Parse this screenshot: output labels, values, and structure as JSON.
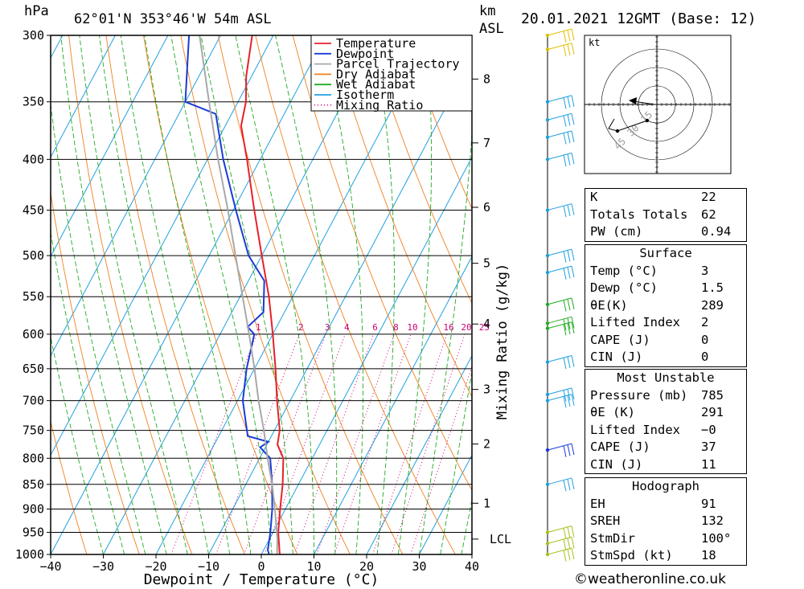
{
  "header": {
    "hpa_label": "hPa",
    "location": "62°01'N  353°46'W  54m  ASL",
    "km_label": "km",
    "asl_label": "ASL",
    "datetime": "20.01.2021  12GMT  (Base: 12)"
  },
  "legend": {
    "items": [
      {
        "label": "Temperature",
        "color": "#e8202a",
        "style": "solid"
      },
      {
        "label": "Dewpoint",
        "color": "#1a3bd8",
        "style": "solid"
      },
      {
        "label": "Parcel Trajectory",
        "color": "#a8a8a8",
        "style": "solid"
      },
      {
        "label": "Dry Adiabat",
        "color": "#f08020",
        "style": "solid"
      },
      {
        "label": "Wet Adiabat",
        "color": "#22aa22",
        "style": "solid"
      },
      {
        "label": "Isotherm",
        "color": "#20a0e0",
        "style": "solid"
      },
      {
        "label": "Mixing Ratio",
        "color": "#cc0077",
        "style": "dotted"
      }
    ]
  },
  "chart_data": {
    "type": "line",
    "xlabel": "Dewpoint / Temperature (°C)",
    "ylabel": "hPa",
    "x_ticks": [
      "−40",
      "−30",
      "−20",
      "−10",
      "0",
      "10",
      "20",
      "30",
      "40"
    ],
    "pressure_ticks": [
      "300",
      "350",
      "400",
      "450",
      "500",
      "550",
      "600",
      "650",
      "700",
      "750",
      "800",
      "850",
      "900",
      "950",
      "1000"
    ],
    "height_axis": {
      "label": "km ASL",
      "ticks": [
        {
          "label": "8",
          "p": 332
        },
        {
          "label": "7",
          "p": 385
        },
        {
          "label": "6",
          "p": 447
        },
        {
          "label": "5",
          "p": 509
        },
        {
          "label": "4",
          "p": 586
        },
        {
          "label": "3",
          "p": 682
        },
        {
          "label": "2",
          "p": 774
        },
        {
          "label": "1",
          "p": 888
        },
        {
          "label": "LCL",
          "p": 965
        }
      ]
    },
    "mixing_ratio_label": "Mixing Ratio (g/kg)",
    "mixing_ratio_values": [
      "1",
      "2",
      "3",
      "4",
      "6",
      "8",
      "10",
      "16",
      "20",
      "25"
    ],
    "ylim": [
      300,
      1000
    ],
    "xlim": [
      -40,
      40
    ],
    "skew": true,
    "series": [
      {
        "name": "Temperature",
        "color": "#e8202a",
        "points": [
          [
            1000,
            3.5
          ],
          [
            950,
            1.0
          ],
          [
            900,
            -1.0
          ],
          [
            850,
            -3.0
          ],
          [
            800,
            -5.5
          ],
          [
            775,
            -8.0
          ],
          [
            750,
            -9.0
          ],
          [
            700,
            -12.5
          ],
          [
            650,
            -16.0
          ],
          [
            600,
            -20.0
          ],
          [
            550,
            -24.5
          ],
          [
            500,
            -30.0
          ],
          [
            450,
            -36.0
          ],
          [
            400,
            -42.5
          ],
          [
            370,
            -47.0
          ],
          [
            350,
            -48.5
          ],
          [
            330,
            -51.0
          ],
          [
            300,
            -54.0
          ]
        ]
      },
      {
        "name": "Dewpoint",
        "color": "#1a3bd8",
        "points": [
          [
            1000,
            1.5
          ],
          [
            990,
            0.8
          ],
          [
            950,
            -0.5
          ],
          [
            900,
            -2.5
          ],
          [
            850,
            -5.0
          ],
          [
            800,
            -8.0
          ],
          [
            780,
            -11.0
          ],
          [
            770,
            -10.0
          ],
          [
            760,
            -14.5
          ],
          [
            700,
            -19.0
          ],
          [
            650,
            -21.5
          ],
          [
            600,
            -23.5
          ],
          [
            590,
            -25.5
          ],
          [
            570,
            -24.0
          ],
          [
            530,
            -27.0
          ],
          [
            500,
            -32.5
          ],
          [
            450,
            -39.5
          ],
          [
            400,
            -47.0
          ],
          [
            360,
            -53.0
          ],
          [
            350,
            -60.0
          ],
          [
            300,
            -66.0
          ]
        ]
      },
      {
        "name": "Parcel Trajectory",
        "color": "#a8a8a8",
        "points": [
          [
            1000,
            3.0
          ],
          [
            965,
            1.5
          ],
          [
            900,
            -2.0
          ],
          [
            850,
            -5.0
          ],
          [
            800,
            -8.5
          ],
          [
            750,
            -12.0
          ],
          [
            700,
            -16.0
          ],
          [
            650,
            -20.0
          ],
          [
            600,
            -24.5
          ],
          [
            550,
            -29.5
          ],
          [
            500,
            -35.0
          ],
          [
            450,
            -41.0
          ],
          [
            400,
            -48.0
          ],
          [
            350,
            -55.5
          ],
          [
            300,
            -64.0
          ]
        ]
      }
    ]
  },
  "hodograph": {
    "unit_label": "kt",
    "ring_labels": [
      "15",
      "30",
      "45"
    ]
  },
  "indices_table": {
    "rows": [
      {
        "label": "K",
        "value": "22"
      },
      {
        "label": "Totals Totals",
        "value": "62"
      },
      {
        "label": "PW (cm)",
        "value": "0.94"
      }
    ]
  },
  "surface_table": {
    "title": "Surface",
    "rows": [
      {
        "label": "Temp (°C)",
        "value": "3"
      },
      {
        "label": "Dewp (°C)",
        "value": "1.5"
      },
      {
        "label": "θE(K)",
        "value": "289"
      },
      {
        "label": "Lifted Index",
        "value": "2"
      },
      {
        "label": "CAPE (J)",
        "value": "0"
      },
      {
        "label": "CIN (J)",
        "value": "0"
      }
    ]
  },
  "unstable_table": {
    "title": "Most Unstable",
    "rows": [
      {
        "label": "Pressure (mb)",
        "value": "785"
      },
      {
        "label": "θE (K)",
        "value": "291"
      },
      {
        "label": "Lifted Index",
        "value": "−0"
      },
      {
        "label": "CAPE (J)",
        "value": "37"
      },
      {
        "label": "CIN (J)",
        "value": "11"
      }
    ]
  },
  "hodograph_table": {
    "title": "Hodograph",
    "rows": [
      {
        "label": "EH",
        "value": "91"
      },
      {
        "label": "SREH",
        "value": "132"
      },
      {
        "label": "StmDir",
        "value": "100°"
      },
      {
        "label": "StmSpd (kt)",
        "value": "18"
      }
    ]
  },
  "credit": "©weatheronline.co.uk"
}
